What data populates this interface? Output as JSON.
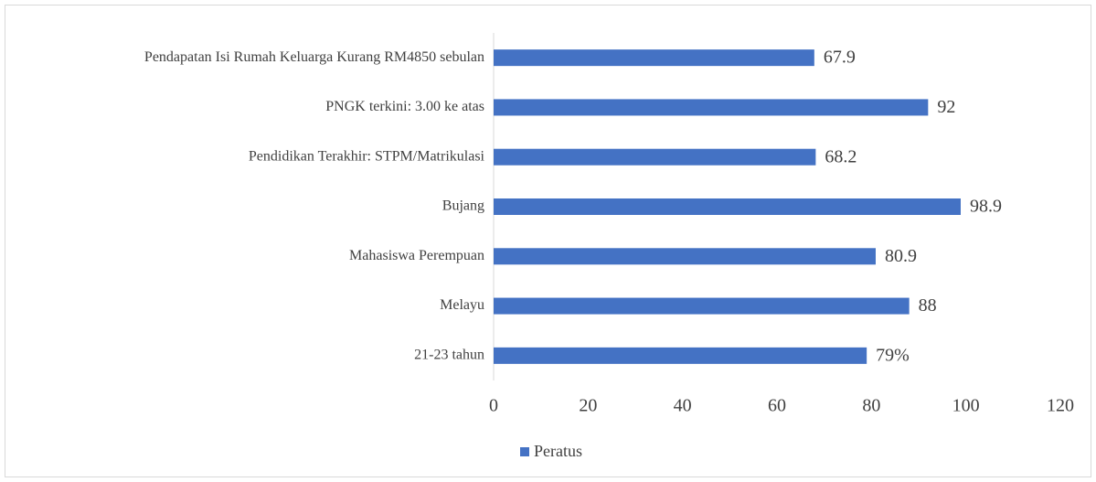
{
  "chart_data": {
    "type": "bar",
    "orientation": "horizontal",
    "categories": [
      "Pendapatan Isi Rumah Keluarga Kurang RM4850 sebulan",
      "PNGK terkini: 3.00 ke atas",
      "Pendidikan Terakhir: STPM/Matrikulasi",
      "Bujang",
      "Mahasiswa Perempuan",
      "Melayu",
      "21-23 tahun"
    ],
    "series": [
      {
        "name": "Peratus",
        "color": "#4472c4",
        "values": [
          67.9,
          92,
          68.2,
          98.9,
          80.9,
          88,
          79
        ],
        "value_labels": [
          "67.9",
          "92",
          "68.2",
          "98.9",
          "80.9",
          "88",
          "79%"
        ]
      }
    ],
    "xlim": [
      0,
      120
    ],
    "xticks": [
      0,
      20,
      40,
      60,
      80,
      100,
      120
    ],
    "grid": false,
    "legend": "bottom"
  }
}
